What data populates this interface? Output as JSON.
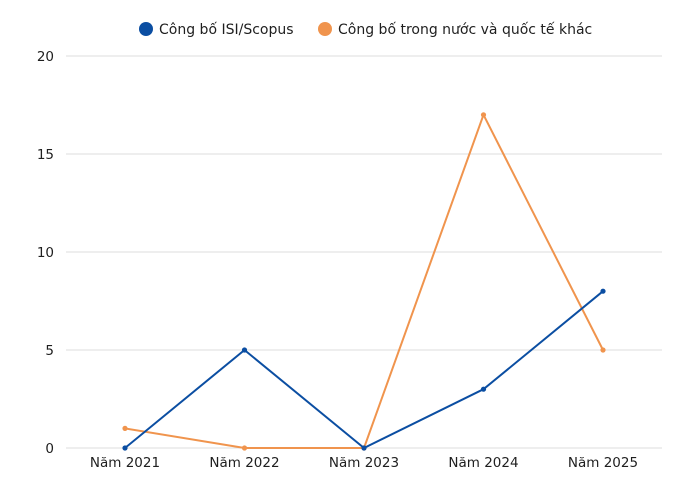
{
  "chart_data": {
    "type": "line",
    "categories": [
      "Năm 2021",
      "Năm 2022",
      "Năm 2023",
      "Năm 2024",
      "Năm 2025"
    ],
    "series": [
      {
        "name": "Công bố ISI/Scopus",
        "color": "#0b4ea2",
        "values": [
          0,
          5,
          0,
          3,
          8
        ]
      },
      {
        "name": "Công bố trong nước và quốc tế khác",
        "color": "#f0944d",
        "values": [
          1,
          0,
          0,
          17,
          5
        ]
      }
    ],
    "ylim": [
      0,
      20
    ],
    "yticks": [
      0,
      5,
      10,
      15,
      20
    ],
    "grid": true,
    "legend_position": "top-center"
  }
}
